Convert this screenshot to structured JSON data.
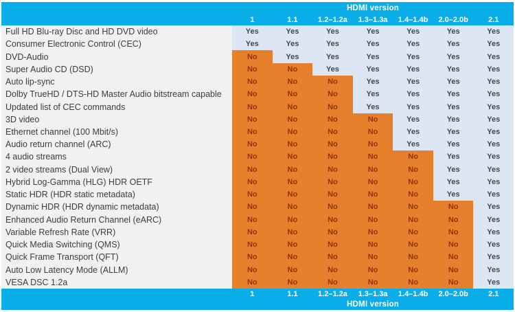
{
  "chart_data": {
    "type": "table",
    "title": "HDMI version",
    "version_columns": [
      "1",
      "1.1",
      "1.2–1.2a",
      "1.3–1.3a",
      "1.4–1.4b",
      "2.0–2.0b",
      "2.1"
    ],
    "features": [
      {
        "name": "Full HD Blu-ray Disc and HD DVD video",
        "support": [
          "Yes",
          "Yes",
          "Yes",
          "Yes",
          "Yes",
          "Yes",
          "Yes"
        ]
      },
      {
        "name": "Consumer Electronic Control (CEC)",
        "support": [
          "Yes",
          "Yes",
          "Yes",
          "Yes",
          "Yes",
          "Yes",
          "Yes"
        ]
      },
      {
        "name": "DVD-Audio",
        "support": [
          "No",
          "Yes",
          "Yes",
          "Yes",
          "Yes",
          "Yes",
          "Yes"
        ]
      },
      {
        "name": "Super Audio CD (DSD)",
        "support": [
          "No",
          "No",
          "Yes",
          "Yes",
          "Yes",
          "Yes",
          "Yes"
        ]
      },
      {
        "name": "Auto lip-sync",
        "support": [
          "No",
          "No",
          "No",
          "Yes",
          "Yes",
          "Yes",
          "Yes"
        ]
      },
      {
        "name": "Dolby TrueHD / DTS-HD Master Audio bitstream capable",
        "support": [
          "No",
          "No",
          "No",
          "Yes",
          "Yes",
          "Yes",
          "Yes"
        ]
      },
      {
        "name": "Updated list of CEC commands",
        "support": [
          "No",
          "No",
          "No",
          "Yes",
          "Yes",
          "Yes",
          "Yes"
        ]
      },
      {
        "name": "3D video",
        "support": [
          "No",
          "No",
          "No",
          "No",
          "Yes",
          "Yes",
          "Yes"
        ]
      },
      {
        "name": "Ethernet channel (100 Mbit/s)",
        "support": [
          "No",
          "No",
          "No",
          "No",
          "Yes",
          "Yes",
          "Yes"
        ]
      },
      {
        "name": "Audio return channel (ARC)",
        "support": [
          "No",
          "No",
          "No",
          "No",
          "Yes",
          "Yes",
          "Yes"
        ]
      },
      {
        "name": "4 audio streams",
        "support": [
          "No",
          "No",
          "No",
          "No",
          "No",
          "Yes",
          "Yes"
        ]
      },
      {
        "name": "2 video streams (Dual View)",
        "support": [
          "No",
          "No",
          "No",
          "No",
          "No",
          "Yes",
          "Yes"
        ]
      },
      {
        "name": "Hybrid Log-Gamma (HLG) HDR OETF",
        "support": [
          "No",
          "No",
          "No",
          "No",
          "No",
          "Yes",
          "Yes"
        ]
      },
      {
        "name": "Static HDR (HDR static metadata)",
        "support": [
          "No",
          "No",
          "No",
          "No",
          "No",
          "Yes",
          "Yes"
        ]
      },
      {
        "name": "Dynamic HDR (HDR dynamic metadata)",
        "support": [
          "No",
          "No",
          "No",
          "No",
          "No",
          "No",
          "Yes"
        ]
      },
      {
        "name": "Enhanced Audio Return Channel (eARC)",
        "support": [
          "No",
          "No",
          "No",
          "No",
          "No",
          "No",
          "Yes"
        ]
      },
      {
        "name": "Variable Refresh Rate (VRR)",
        "support": [
          "No",
          "No",
          "No",
          "No",
          "No",
          "No",
          "Yes"
        ]
      },
      {
        "name": "Quick Media Switching (QMS)",
        "support": [
          "No",
          "No",
          "No",
          "No",
          "No",
          "No",
          "Yes"
        ]
      },
      {
        "name": "Quick Frame Transport (QFT)",
        "support": [
          "No",
          "No",
          "No",
          "No",
          "No",
          "No",
          "Yes"
        ]
      },
      {
        "name": "Auto Low Latency Mode (ALLM)",
        "support": [
          "No",
          "No",
          "No",
          "No",
          "No",
          "No",
          "Yes"
        ]
      },
      {
        "name": "VESA DSC 1.2a",
        "support": [
          "No",
          "No",
          "No",
          "No",
          "No",
          "No",
          "Yes"
        ]
      }
    ]
  },
  "header": {
    "title": "HDMI version"
  },
  "footer": {
    "title": "HDMI version"
  },
  "colors": {
    "band_bg": "#0BADE9",
    "band_text": "#FFFFFF",
    "yes_bg": "#DCE7F3",
    "yes_text": "#3E4956",
    "no_bg": "#E6802C",
    "no_text": "#8E3408",
    "label_bg": "#F1F1F0",
    "label_text": "#3C3C3C"
  }
}
